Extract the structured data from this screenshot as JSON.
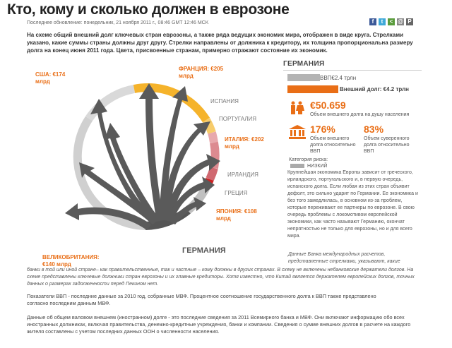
{
  "header": {
    "title": "Кто, кому и сколько должен в еврозоне",
    "updated": "Последнее обновление: понедельник, 21 ноября 2011 г., 08:46 GMT 12:46 MCK",
    "intro": "На схеме общий внешний долг ключевых стран еврозоны, а также ряда ведущих экономик мира, отображен в виде круга. Стрелками указано, какие суммы страны должны друг другу. Стрелки направлены от должника к кредитору, их толщина пропорциональна размеру долга на конец июня 2011 года. Цвета, присвоенные странам, примерно отражают состояние их экономик."
  },
  "social": [
    {
      "name": "facebook-icon",
      "glyph": "f",
      "color": "#3b5998"
    },
    {
      "name": "twitter-icon",
      "glyph": "t",
      "color": "#3fa9d8"
    },
    {
      "name": "share-icon",
      "glyph": "<",
      "color": "#5a9c3c"
    },
    {
      "name": "email-icon",
      "glyph": "@",
      "color": "#888888"
    },
    {
      "name": "print-icon",
      "glyph": "P",
      "color": "#666666"
    }
  ],
  "countries": {
    "usa": "США: €174 млрд",
    "france": "ФРАНЦИЯ: €205 млрд",
    "spain": "ИСПАНИЯ",
    "portugal": "ПОРТУГАЛИЯ",
    "italy": "ИТАЛИЯ: €202 млрд",
    "ireland": "ИРЛАНДИЯ",
    "greece": "ГРЕЦИЯ",
    "japan": "ЯПОНИЯ: €108 млрд",
    "germany": "ГЕРМАНИЯ",
    "uk": "ВЕЛИКОБРИТАНИЯ: €140 млрд"
  },
  "panel": {
    "country": "ГЕРМАНИЯ",
    "gdp_label": "ВВП€2.4 трлн",
    "gdp_value_trln": 2.4,
    "debt_label": "Внешний долг: €4.2 трлн",
    "debt_value_trln": 4.2,
    "per_capita": "€50.659",
    "per_capita_label": "Объем внешнего долга на душу населения",
    "debt_gdp": "176%",
    "debt_gdp_label": "Объем внешнего долга относительно ВВП",
    "sov_gdp": "83%",
    "sov_gdp_label": "Объем суверенного долга относительно ВВП",
    "risk_label": "Категория риска:",
    "risk_value": "НИЗКИЙ",
    "description": "Крупнейшая экономика Европы зависит от греческого, ирландского, португальского и, в первую очередь, испанского долга. Если любая из этих стран объявит дефолт, это сильно ударит по Германии. Ее экономика и без того замедлилась, в основном из-за проблем, которые переживают ее партнеры по еврозоне. В свою очередь проблемы с локомотивом европейской экономики, как часто называют Германию, окончат непрятностью не только для еврозоны, но и для всего мира."
  },
  "notes": {
    "bis": "Данные Банка международных расчетов, представленные стрелками, указывают, какие",
    "bis2": "банки в той или иной стране– как правительственные, так и частные – кому должны в других странах. В схему не включены небанковские держатели долгов. На схеме представлены ключевые должники стран еврозоны и их главные кредиторы. Хотя известно, что Китай является держателем европейских долгов, точных данных о размерах задолженности перед Пекином нет.",
    "gdp": "Показатели ВВП - последние данные за 2010 год, собранные МВФ. Процентное соотношение государственного долга к ВВП также представлено согласно последним данным МВФ.",
    "total": "Данные об общем валовом внешнем (иностранном) долге - это последние сведения за 2011 Всемирного банка и МВФ. Они включают информацию обо всех иностранных должниках, включая правительства, денежно-кредитные учреждения, банки и компании. Сведения о сумме внешних долгов в расчете на каждого жителя составлены с учетом последних данных ООН о численности населения."
  },
  "colors": {
    "accent": "#e96e16",
    "arrow": "#555555",
    "ring_gray": "#d9d9d9"
  }
}
